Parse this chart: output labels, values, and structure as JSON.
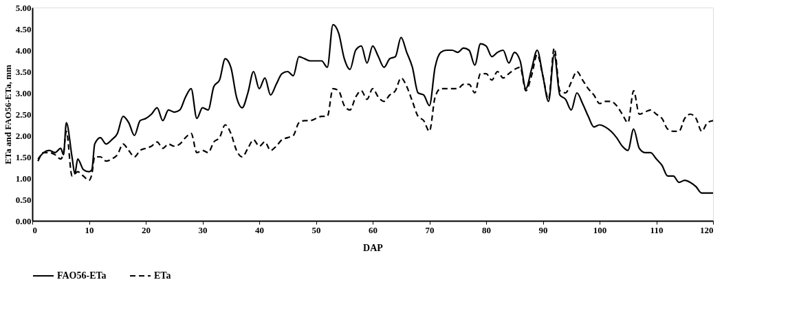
{
  "chart_data": {
    "type": "line",
    "xlabel": "DAP",
    "ylabel": "ETa and FAO56-ETa, mm",
    "x": [
      1,
      2,
      3,
      4,
      5,
      5.5,
      6,
      7,
      7.5,
      8,
      9,
      10,
      10.5,
      11,
      12,
      13,
      14,
      15,
      16,
      17,
      18,
      19,
      20,
      21,
      22,
      23,
      24,
      25,
      26,
      27,
      28,
      29,
      30,
      31,
      32,
      33,
      34,
      35,
      36,
      37,
      38,
      39,
      40,
      41,
      42,
      43,
      44,
      45,
      46,
      47,
      48,
      49,
      50,
      51,
      52,
      53,
      54,
      55,
      56,
      57,
      58,
      59,
      60,
      61,
      62,
      63,
      64,
      65,
      66,
      67,
      68,
      69,
      70,
      71,
      72,
      73,
      74,
      75,
      76,
      77,
      78,
      79,
      80,
      81,
      82,
      83,
      84,
      85,
      86,
      87,
      88,
      89,
      90,
      91,
      92,
      93,
      94,
      95,
      96,
      97,
      98,
      99,
      100,
      101,
      102,
      103,
      104,
      105,
      106,
      107,
      108,
      109,
      110,
      111,
      112,
      113,
      114,
      115,
      116,
      117,
      118,
      119,
      120
    ],
    "series": [
      {
        "name": "FAO56-ETa",
        "color": "#000000",
        "line_style": "solid",
        "values": [
          1.45,
          1.6,
          1.65,
          1.6,
          1.7,
          1.55,
          2.3,
          1.5,
          1.1,
          1.45,
          1.2,
          1.15,
          1.2,
          1.8,
          1.95,
          1.8,
          1.9,
          2.05,
          2.45,
          2.3,
          2.0,
          2.35,
          2.4,
          2.5,
          2.65,
          2.35,
          2.6,
          2.55,
          2.6,
          2.9,
          3.1,
          2.4,
          2.65,
          2.6,
          3.15,
          3.3,
          3.8,
          3.6,
          2.9,
          2.65,
          3.0,
          3.5,
          3.1,
          3.35,
          2.95,
          3.2,
          3.45,
          3.5,
          3.4,
          3.85,
          3.8,
          3.75,
          3.75,
          3.75,
          3.6,
          4.6,
          4.4,
          3.8,
          3.55,
          4.0,
          4.1,
          3.7,
          4.1,
          3.85,
          3.6,
          3.8,
          3.85,
          4.3,
          3.95,
          3.6,
          3.0,
          2.95,
          2.7,
          3.6,
          3.95,
          4.0,
          4.0,
          3.95,
          4.05,
          4.0,
          3.65,
          4.15,
          4.1,
          3.85,
          3.95,
          4.0,
          3.7,
          3.95,
          3.75,
          3.1,
          3.55,
          4.0,
          3.4,
          2.8,
          3.9,
          2.95,
          2.85,
          2.6,
          3.0,
          2.75,
          2.45,
          2.2,
          2.25,
          2.2,
          2.1,
          1.95,
          1.75,
          1.65,
          2.15,
          1.7,
          1.6,
          1.6,
          1.45,
          1.3,
          1.05,
          1.05,
          0.9,
          0.95,
          0.9,
          0.8,
          0.65,
          0.65,
          0.65
        ]
      },
      {
        "name": "ETa",
        "color": "#000000",
        "line_style": "dashed",
        "values": [
          1.4,
          1.6,
          1.6,
          1.55,
          1.45,
          1.6,
          2.1,
          1.05,
          1.1,
          1.15,
          1.05,
          0.95,
          1.1,
          1.5,
          1.5,
          1.4,
          1.45,
          1.55,
          1.8,
          1.65,
          1.5,
          1.65,
          1.7,
          1.75,
          1.85,
          1.7,
          1.8,
          1.75,
          1.8,
          1.95,
          2.05,
          1.6,
          1.65,
          1.6,
          1.85,
          1.95,
          2.25,
          2.05,
          1.65,
          1.5,
          1.7,
          1.9,
          1.75,
          1.85,
          1.65,
          1.75,
          1.9,
          1.95,
          2.0,
          2.3,
          2.35,
          2.35,
          2.4,
          2.45,
          2.45,
          3.1,
          3.05,
          2.7,
          2.6,
          2.9,
          3.05,
          2.85,
          3.1,
          2.9,
          2.8,
          2.95,
          3.05,
          3.35,
          3.15,
          2.8,
          2.45,
          2.35,
          2.1,
          2.9,
          3.1,
          3.1,
          3.1,
          3.1,
          3.2,
          3.2,
          3.0,
          3.45,
          3.45,
          3.3,
          3.5,
          3.35,
          3.45,
          3.55,
          3.6,
          3.05,
          3.4,
          3.9,
          3.4,
          2.85,
          4.05,
          3.05,
          3.0,
          3.25,
          3.5,
          3.3,
          3.1,
          2.95,
          2.75,
          2.8,
          2.8,
          2.7,
          2.5,
          2.3,
          3.05,
          2.5,
          2.55,
          2.6,
          2.5,
          2.4,
          2.15,
          2.1,
          2.1,
          2.4,
          2.5,
          2.4,
          2.1,
          2.3,
          2.35
        ]
      }
    ],
    "xlim": [
      0,
      120
    ],
    "xticks": [
      0,
      10,
      20,
      30,
      40,
      50,
      60,
      70,
      80,
      90,
      100,
      110,
      120
    ],
    "ylim": [
      0,
      5
    ],
    "yticks": [
      {
        "value": 0,
        "label": "0.00"
      },
      {
        "value": 0.5,
        "label": "0.50"
      },
      {
        "value": 1,
        "label": "1.00"
      },
      {
        "value": 1.5,
        "label": "1.50"
      },
      {
        "value": 2,
        "label": "2.00"
      },
      {
        "value": 2.5,
        "label": "2.50"
      },
      {
        "value": 3,
        "label": "3.00"
      },
      {
        "value": 3.5,
        "label": "3.50"
      },
      {
        "value": 4,
        "label": "4.00"
      },
      {
        "value": 4.5,
        "label": "4.50"
      },
      {
        "value": 5,
        "label": "5.00"
      }
    ],
    "grid": false,
    "legend": "bottom",
    "marker": "none"
  }
}
